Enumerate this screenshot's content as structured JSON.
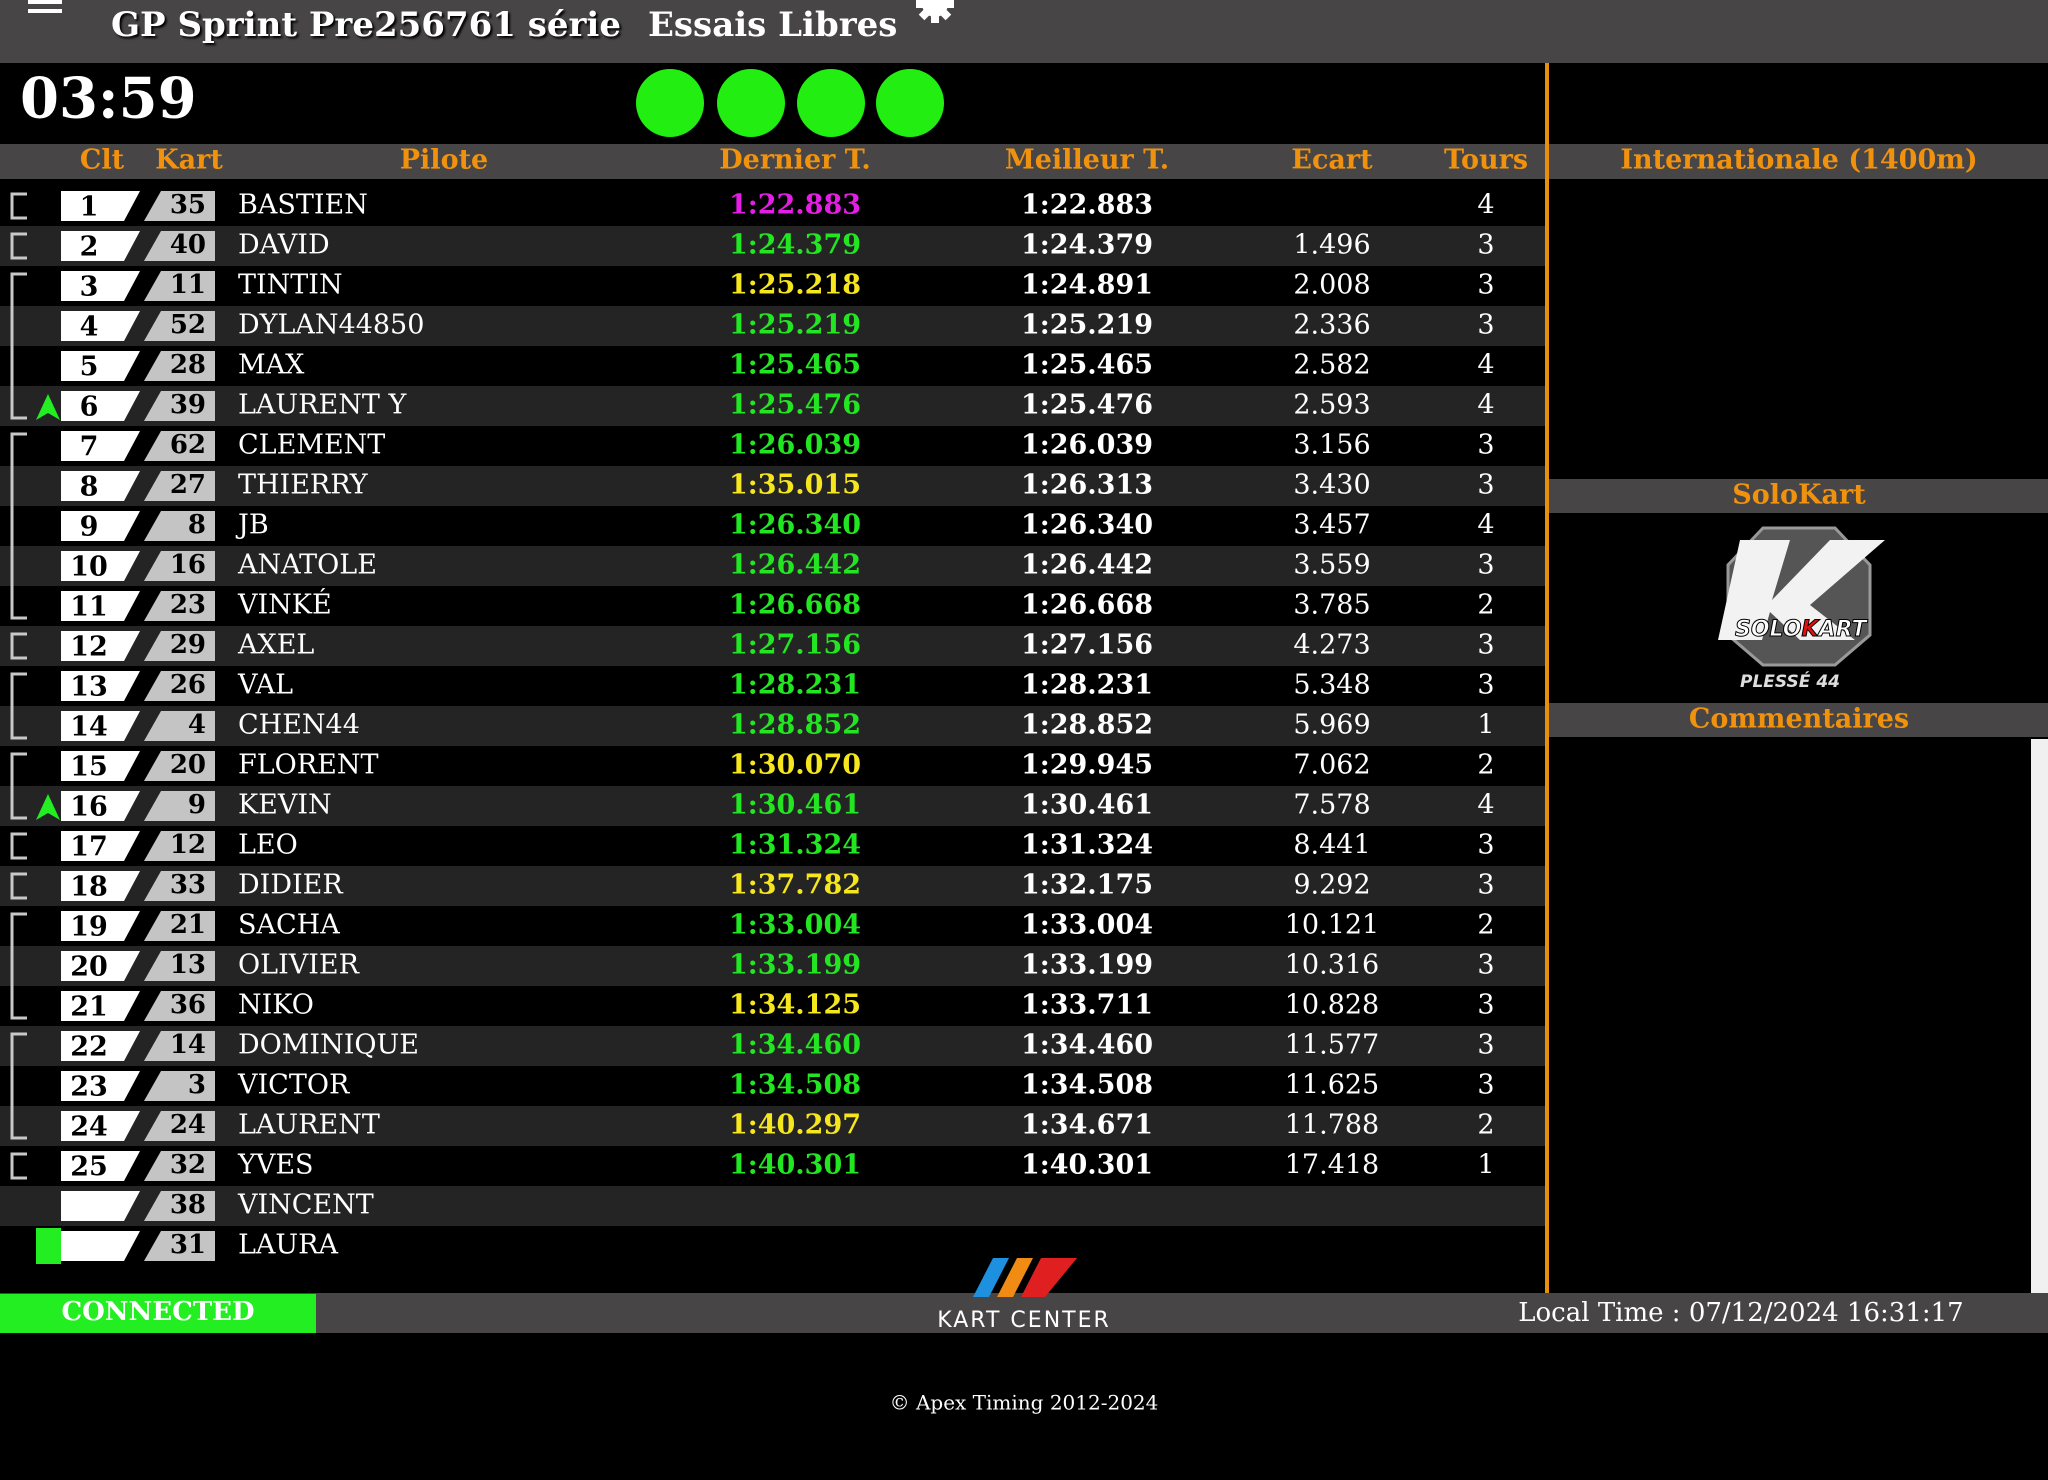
{
  "header": {
    "title": "GP Sprint Pre256761 série",
    "session": "Essais Libres",
    "timer": "03:59"
  },
  "table": {
    "columns": [
      "Clt",
      "Kart",
      "Pilote",
      "Dernier T.",
      "Meilleur T.",
      "Ecart",
      "Tours"
    ],
    "rows": [
      {
        "pos": 1,
        "kart": 35,
        "pilot": "BASTIEN",
        "last": "1:22.883",
        "last_color": "#e41ee4",
        "best": "1:22.883",
        "gap": null,
        "laps": 4
      },
      {
        "pos": 2,
        "kart": 40,
        "pilot": "DAVID",
        "last": "1:24.379",
        "last_color": "#22e622",
        "best": "1:24.379",
        "gap": "1.496",
        "laps": 3
      },
      {
        "pos": 3,
        "kart": 11,
        "pilot": "TINTIN",
        "last": "1:25.218",
        "last_color": "#f5e61e",
        "best": "1:24.891",
        "gap": "2.008",
        "laps": 3
      },
      {
        "pos": 4,
        "kart": 52,
        "pilot": "DYLAN44850",
        "last": "1:25.219",
        "last_color": "#22e622",
        "best": "1:25.219",
        "gap": "2.336",
        "laps": 3
      },
      {
        "pos": 5,
        "kart": 28,
        "pilot": "MAX",
        "last": "1:25.465",
        "last_color": "#22e622",
        "best": "1:25.465",
        "gap": "2.582",
        "laps": 4
      },
      {
        "pos": 6,
        "kart": 39,
        "pilot": "LAURENT Y",
        "last": "1:25.476",
        "last_color": "#22e622",
        "best": "1:25.476",
        "gap": "2.593",
        "laps": 4,
        "marker": "up"
      },
      {
        "pos": 7,
        "kart": 62,
        "pilot": "CLEMENT",
        "last": "1:26.039",
        "last_color": "#22e622",
        "best": "1:26.039",
        "gap": "3.156",
        "laps": 3
      },
      {
        "pos": 8,
        "kart": 27,
        "pilot": "THIERRY",
        "last": "1:35.015",
        "last_color": "#f5e61e",
        "best": "1:26.313",
        "gap": "3.430",
        "laps": 3
      },
      {
        "pos": 9,
        "kart": 8,
        "pilot": "JB",
        "last": "1:26.340",
        "last_color": "#22e622",
        "best": "1:26.340",
        "gap": "3.457",
        "laps": 4
      },
      {
        "pos": 10,
        "kart": 16,
        "pilot": "ANATOLE",
        "last": "1:26.442",
        "last_color": "#22e622",
        "best": "1:26.442",
        "gap": "3.559",
        "laps": 3
      },
      {
        "pos": 11,
        "kart": 23,
        "pilot": "VINKÉ",
        "last": "1:26.668",
        "last_color": "#22e622",
        "best": "1:26.668",
        "gap": "3.785",
        "laps": 2
      },
      {
        "pos": 12,
        "kart": 29,
        "pilot": "AXEL",
        "last": "1:27.156",
        "last_color": "#22e622",
        "best": "1:27.156",
        "gap": "4.273",
        "laps": 3
      },
      {
        "pos": 13,
        "kart": 26,
        "pilot": "VAL",
        "last": "1:28.231",
        "last_color": "#22e622",
        "best": "1:28.231",
        "gap": "5.348",
        "laps": 3
      },
      {
        "pos": 14,
        "kart": 4,
        "pilot": "CHEN44",
        "last": "1:28.852",
        "last_color": "#22e622",
        "best": "1:28.852",
        "gap": "5.969",
        "laps": 1
      },
      {
        "pos": 15,
        "kart": 20,
        "pilot": "FLORENT",
        "last": "1:30.070",
        "last_color": "#f5e61e",
        "best": "1:29.945",
        "gap": "7.062",
        "laps": 2
      },
      {
        "pos": 16,
        "kart": 9,
        "pilot": "KEVIN",
        "last": "1:30.461",
        "last_color": "#22e622",
        "best": "1:30.461",
        "gap": "7.578",
        "laps": 4,
        "marker": "up"
      },
      {
        "pos": 17,
        "kart": 12,
        "pilot": "LEO",
        "last": "1:31.324",
        "last_color": "#22e622",
        "best": "1:31.324",
        "gap": "8.441",
        "laps": 3
      },
      {
        "pos": 18,
        "kart": 33,
        "pilot": "DIDIER",
        "last": "1:37.782",
        "last_color": "#f5e61e",
        "best": "1:32.175",
        "gap": "9.292",
        "laps": 3
      },
      {
        "pos": 19,
        "kart": 21,
        "pilot": "SACHA",
        "last": "1:33.004",
        "last_color": "#22e622",
        "best": "1:33.004",
        "gap": "10.121",
        "laps": 2
      },
      {
        "pos": 20,
        "kart": 13,
        "pilot": "OLIVIER",
        "last": "1:33.199",
        "last_color": "#22e622",
        "best": "1:33.199",
        "gap": "10.316",
        "laps": 3
      },
      {
        "pos": 21,
        "kart": 36,
        "pilot": "NIKO",
        "last": "1:34.125",
        "last_color": "#f5e61e",
        "best": "1:33.711",
        "gap": "10.828",
        "laps": 3
      },
      {
        "pos": 22,
        "kart": 14,
        "pilot": "DOMINIQUE",
        "last": "1:34.460",
        "last_color": "#22e622",
        "best": "1:34.460",
        "gap": "11.577",
        "laps": 3
      },
      {
        "pos": 23,
        "kart": 3,
        "pilot": "VICTOR",
        "last": "1:34.508",
        "last_color": "#22e622",
        "best": "1:34.508",
        "gap": "11.625",
        "laps": 3
      },
      {
        "pos": 24,
        "kart": 24,
        "pilot": "LAURENT",
        "last": "1:40.297",
        "last_color": "#f5e61e",
        "best": "1:34.671",
        "gap": "11.788",
        "laps": 2
      },
      {
        "pos": 25,
        "kart": 32,
        "pilot": "YVES",
        "last": "1:40.301",
        "last_color": "#22e622",
        "best": "1:40.301",
        "gap": "17.418",
        "laps": 1
      },
      {
        "pos": null,
        "kart": 38,
        "pilot": "VINCENT",
        "last": null,
        "last_color": null,
        "best": null,
        "gap": null,
        "laps": null
      },
      {
        "pos": null,
        "kart": 31,
        "pilot": "LAURA",
        "last": null,
        "last_color": null,
        "best": null,
        "gap": null,
        "laps": null,
        "marker": "pit"
      }
    ]
  },
  "side": {
    "track": "Internationale (1400m)",
    "sponsor": "SoloKart",
    "sponsor_logo": {
      "brand_1": "SOLO",
      "brand_2": "K",
      "brand_3": "ART",
      "location": "PLESSÉ 44"
    },
    "comments_title": "Commentaires"
  },
  "footer": {
    "status": "CONNECTED",
    "brand": "KART CENTER",
    "local_time": "Local Time : 07/12/2024 16:31:17",
    "copyright": "© Apex Timing 2012-2024"
  }
}
